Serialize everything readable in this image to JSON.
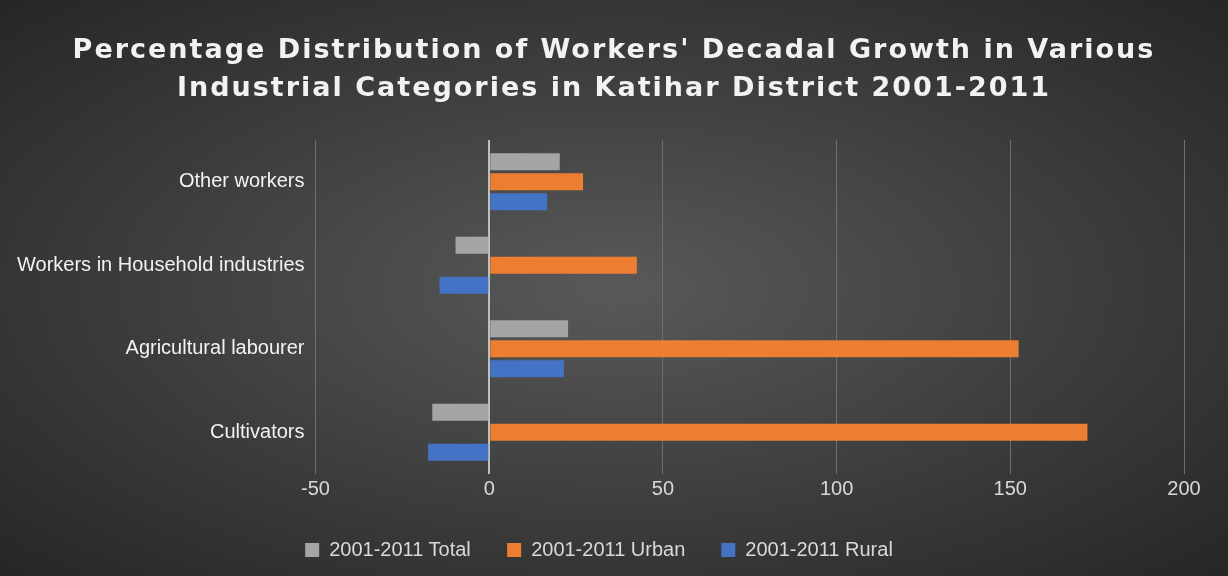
{
  "chart_data": {
    "type": "bar",
    "orientation": "horizontal",
    "title": "Percentage Distribution of Workers' Decadal Growth in Various Industrial Categories in Katihar District 2001-2011",
    "categories": [
      "Other workers",
      "Workers in Household industries",
      "Agricultural labourer",
      "Cultivators"
    ],
    "series": [
      {
        "name": "2001-2011 Total",
        "color": "#a5a5a5",
        "values": [
          20.3,
          -9.7,
          22.7,
          -16.4
        ]
      },
      {
        "name": "2001-2011 Urban",
        "color": "#ed7d31",
        "values": [
          27,
          42.5,
          152.4,
          172.2
        ]
      },
      {
        "name": "2001-2011 Rural",
        "color": "#4472c4",
        "values": [
          16.7,
          -14.3,
          21.5,
          -17.6
        ]
      }
    ],
    "xlim": [
      -50,
      200
    ],
    "xticks": [
      -50,
      0,
      50,
      100,
      150,
      200
    ],
    "grid": "x",
    "legend": "bottom"
  }
}
